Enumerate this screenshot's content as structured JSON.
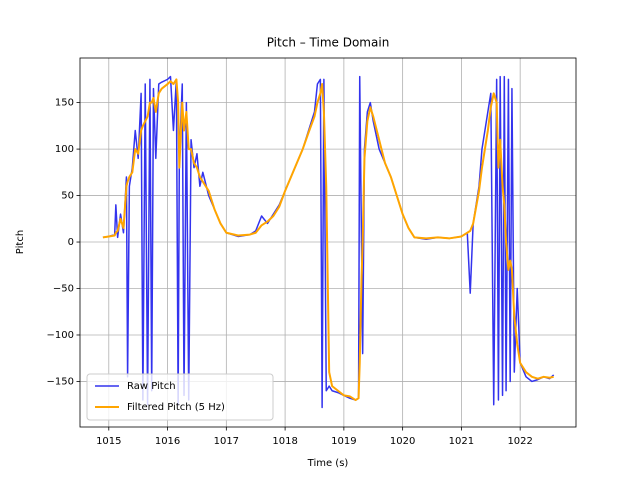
{
  "chart_data": {
    "type": "line",
    "title": "Pitch – Time Domain",
    "xlabel": "Time (s)",
    "ylabel": "Pitch",
    "x": [
      1014.9,
      1015.0,
      1015.1,
      1015.12,
      1015.15,
      1015.2,
      1015.25,
      1015.3,
      1015.32,
      1015.35,
      1015.4,
      1015.45,
      1015.5,
      1015.55,
      1015.58,
      1015.62,
      1015.66,
      1015.7,
      1015.73,
      1015.76,
      1015.8,
      1015.85,
      1015.9,
      1016.0,
      1016.05,
      1016.1,
      1016.15,
      1016.18,
      1016.2,
      1016.25,
      1016.28,
      1016.32,
      1016.36,
      1016.4,
      1016.45,
      1016.5,
      1016.55,
      1016.6,
      1016.7,
      1016.8,
      1016.9,
      1017.0,
      1017.2,
      1017.4,
      1017.5,
      1017.6,
      1017.7,
      1017.8,
      1017.9,
      1018.0,
      1018.1,
      1018.2,
      1018.3,
      1018.4,
      1018.5,
      1018.55,
      1018.6,
      1018.63,
      1018.66,
      1018.7,
      1018.75,
      1018.8,
      1018.9,
      1019.0,
      1019.1,
      1019.2,
      1019.25,
      1019.27,
      1019.3,
      1019.32,
      1019.35,
      1019.4,
      1019.45,
      1019.5,
      1019.6,
      1019.7,
      1019.8,
      1019.9,
      1020.0,
      1020.1,
      1020.2,
      1020.4,
      1020.6,
      1020.8,
      1021.0,
      1021.1,
      1021.15,
      1021.2,
      1021.3,
      1021.35,
      1021.4,
      1021.45,
      1021.5,
      1021.55,
      1021.6,
      1021.63,
      1021.66,
      1021.7,
      1021.73,
      1021.76,
      1021.8,
      1021.83,
      1021.86,
      1021.9,
      1021.95,
      1022.0,
      1022.1,
      1022.2,
      1022.3,
      1022.4,
      1022.5,
      1022.57
    ],
    "series": [
      {
        "name": "Raw Pitch",
        "color": "#3333ee",
        "width": 1.5,
        "values": [
          5,
          6,
          8,
          40,
          5,
          30,
          10,
          70,
          -145,
          60,
          80,
          120,
          90,
          160,
          -170,
          170,
          -175,
          175,
          -160,
          165,
          90,
          170,
          172,
          175,
          178,
          120,
          175,
          -175,
          90,
          170,
          -165,
          150,
          -170,
          110,
          80,
          95,
          60,
          75,
          50,
          35,
          20,
          10,
          6,
          8,
          12,
          28,
          20,
          30,
          40,
          55,
          70,
          85,
          100,
          120,
          140,
          170,
          175,
          -178,
          175,
          -160,
          -155,
          -160,
          -162,
          -165,
          -168,
          -170,
          -168,
          178,
          0,
          -120,
          100,
          140,
          150,
          130,
          100,
          85,
          70,
          50,
          30,
          15,
          5,
          3,
          5,
          4,
          6,
          10,
          -55,
          20,
          60,
          100,
          120,
          140,
          160,
          -175,
          175,
          -170,
          178,
          -165,
          178,
          -160,
          175,
          -150,
          165,
          -140,
          -50,
          -130,
          -145,
          -150,
          -148,
          -145,
          -147,
          -143
        ]
      },
      {
        "name": "Filtered Pitch (5 Hz)",
        "color": "#ffa500",
        "width": 2,
        "values": [
          5,
          6,
          7,
          10,
          12,
          25,
          15,
          60,
          65,
          70,
          75,
          100,
          95,
          120,
          125,
          130,
          135,
          150,
          150,
          155,
          140,
          160,
          165,
          170,
          173,
          170,
          175,
          150,
          80,
          150,
          120,
          140,
          100,
          100,
          85,
          80,
          70,
          65,
          55,
          35,
          20,
          10,
          7,
          8,
          10,
          18,
          22,
          28,
          38,
          55,
          70,
          85,
          100,
          118,
          135,
          150,
          160,
          170,
          140,
          60,
          -140,
          -155,
          -160,
          -165,
          -166,
          -170,
          -168,
          -130,
          -40,
          0,
          90,
          130,
          145,
          135,
          110,
          85,
          70,
          50,
          30,
          15,
          5,
          4,
          5,
          4,
          6,
          10,
          12,
          20,
          55,
          80,
          100,
          120,
          145,
          160,
          150,
          80,
          110,
          60,
          40,
          0,
          -30,
          -20,
          -30,
          -80,
          -110,
          -130,
          -140,
          -145,
          -147,
          -145,
          -146,
          -145
        ]
      }
    ],
    "xlim": [
      1014.51,
      1022.95
    ],
    "ylim": [
      -199,
      198
    ],
    "xticks": [
      1015,
      1016,
      1017,
      1018,
      1019,
      1020,
      1021,
      1022
    ],
    "yticks": [
      {
        "value": -150,
        "label": "−150"
      },
      {
        "value": -100,
        "label": "−100"
      },
      {
        "value": -50,
        "label": "−50"
      },
      0,
      50,
      100,
      150
    ],
    "grid": true,
    "legend": "lower left"
  }
}
